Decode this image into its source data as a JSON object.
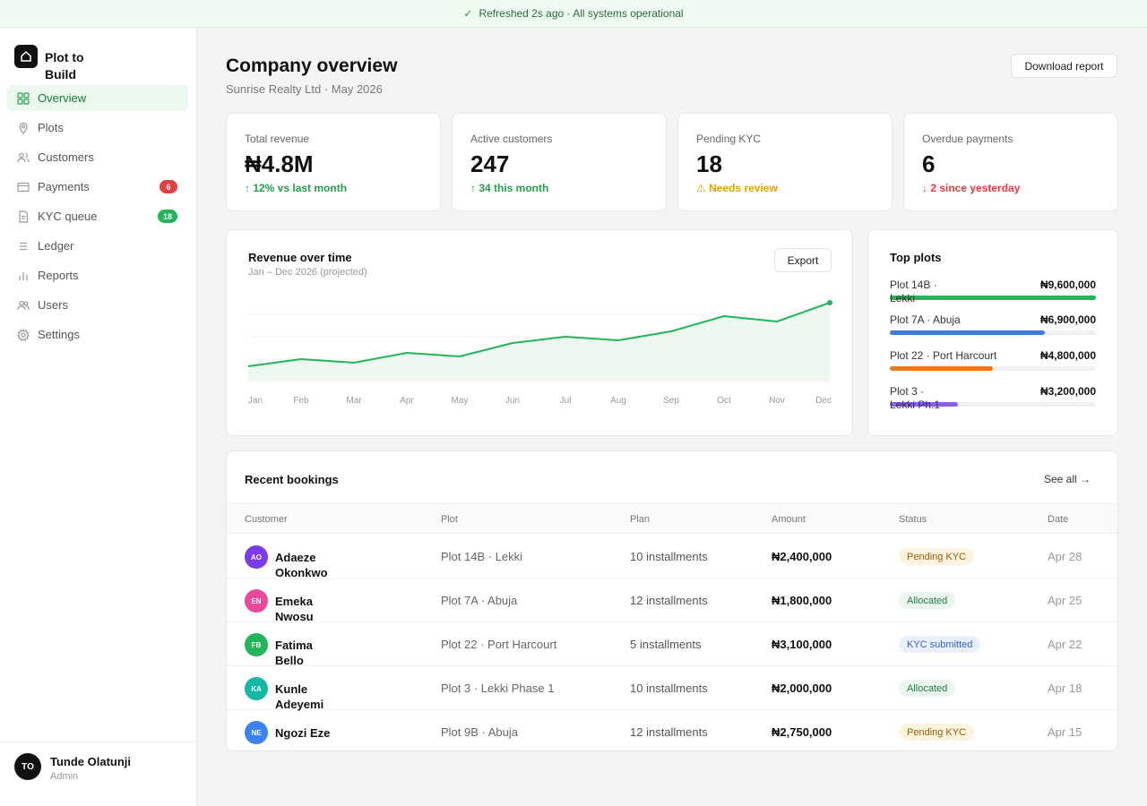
{
  "status_bar": {
    "text": "Refreshed 2s ago · All systems operational"
  },
  "brand": {
    "name": "Plot to Build"
  },
  "nav": [
    {
      "label": "Overview",
      "icon": "grid-icon",
      "active": true
    },
    {
      "label": "Plots",
      "icon": "map-pin-icon"
    },
    {
      "label": "Customers",
      "icon": "customers-icon"
    },
    {
      "label": "Payments",
      "icon": "credit-card-icon",
      "badge": "6",
      "badge_color": "red"
    },
    {
      "label": "KYC queue",
      "icon": "document-icon",
      "badge": "18",
      "badge_color": "green"
    },
    {
      "label": "Ledger",
      "icon": "list-icon"
    },
    {
      "label": "Reports",
      "icon": "bar-chart-icon"
    },
    {
      "label": "Users",
      "icon": "users-icon"
    },
    {
      "label": "Settings",
      "icon": "gear-icon"
    }
  ],
  "user": {
    "initials": "TO",
    "name": "Tunde Olatunji",
    "role": "Admin"
  },
  "header": {
    "title": "Company overview",
    "subtitle": "Sunrise Realty Ltd · May 2026",
    "download_label": "Download report"
  },
  "kpis": [
    {
      "label": "Total revenue",
      "value": "₦4.8M",
      "delta": "↑ 12% vs last month",
      "tone": "green"
    },
    {
      "label": "Active customers",
      "value": "247",
      "delta": "↑ 34 this month",
      "tone": "green"
    },
    {
      "label": "Pending KYC",
      "value": "18",
      "delta": "⚠ Needs review",
      "tone": "amber"
    },
    {
      "label": "Overdue payments",
      "value": "6",
      "delta": "↓ 2 since yesterday",
      "tone": "red"
    }
  ],
  "revenue_chart": {
    "title": "Revenue over time",
    "subtitle": "Jan – Dec 2026 (projected)",
    "export_label": "Export"
  },
  "chart_data": {
    "type": "area",
    "title": "Revenue over time",
    "subtitle": "Jan – Dec 2026 (projected)",
    "categories": [
      "Jan",
      "Feb",
      "Mar",
      "Apr",
      "May",
      "Jun",
      "Jul",
      "Aug",
      "Sep",
      "Oct",
      "Nov",
      "Dec"
    ],
    "values": [
      16,
      24,
      20,
      31,
      27,
      42,
      49,
      45,
      55,
      72,
      66,
      87
    ],
    "ylim": [
      0,
      100
    ],
    "grid": true,
    "color": "#22b55a"
  },
  "top_plots": {
    "title": "Top plots",
    "items": [
      {
        "name": "Plot 14B · Lekki",
        "amount": "₦9,600,000",
        "share": 1.0,
        "color": "#22b55a"
      },
      {
        "name": "Plot 7A · Abuja",
        "amount": "₦6,900,000",
        "share": 0.75,
        "color": "#3b7ddd"
      },
      {
        "name": "Plot 22 · Port Harcourt",
        "amount": "₦4,800,000",
        "share": 0.5,
        "color": "#ec7a1c"
      },
      {
        "name": "Plot 3 · Lekki Ph.1",
        "amount": "₦3,200,000",
        "share": 0.33,
        "color": "#8b5cf6"
      }
    ]
  },
  "bookings": {
    "title": "Recent bookings",
    "see_all": "See all →",
    "columns": [
      "Customer",
      "Plot",
      "Plan",
      "Amount",
      "Status",
      "Date"
    ],
    "rows": [
      {
        "initials": "AO",
        "avatar_color": "#7c3aed",
        "customer": "Adaeze Okonkwo",
        "plot": "Plot 14B · Lekki",
        "plan": "10 installments",
        "amount": "₦2,400,000",
        "status": "Pending KYC",
        "status_tone": "amber",
        "date": "Apr 28"
      },
      {
        "initials": "EN",
        "avatar_color": "#ec4899",
        "customer": "Emeka Nwosu",
        "plot": "Plot 7A · Abuja",
        "plan": "12 installments",
        "amount": "₦1,800,000",
        "status": "Allocated",
        "status_tone": "green",
        "date": "Apr 25"
      },
      {
        "initials": "FB",
        "avatar_color": "#22b55a",
        "customer": "Fatima Bello",
        "plot": "Plot 22 · Port Harcourt",
        "plan": "5 installments",
        "amount": "₦3,100,000",
        "status": "KYC submitted",
        "status_tone": "blue",
        "date": "Apr 22"
      },
      {
        "initials": "KA",
        "avatar_color": "#14b8a6",
        "customer": "Kunle Adeyemi",
        "plot": "Plot 3 · Lekki Phase 1",
        "plan": "10 installments",
        "amount": "₦2,000,000",
        "status": "Allocated",
        "status_tone": "green",
        "date": "Apr 18"
      },
      {
        "initials": "NE",
        "avatar_color": "#3b82f6",
        "customer": "Ngozi Eze",
        "plot": "Plot 9B · Abuja",
        "plan": "12 installments",
        "amount": "₦2,750,000",
        "status": "Pending KYC",
        "status_tone": "amber",
        "date": "Apr 15"
      }
    ]
  }
}
